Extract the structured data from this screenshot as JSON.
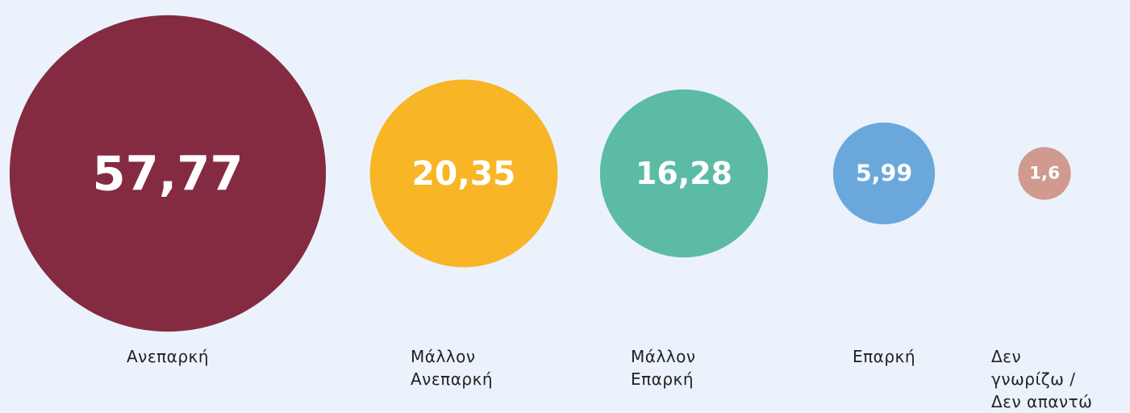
{
  "chart_data": {
    "type": "bubble",
    "categories": [
      "Ανεπαρκή",
      "Μάλλον Ανεπαρκή",
      "Μάλλον Επαρκή",
      "Επαρκή",
      "Δεν γνωρίζω / Δεν απαντώ"
    ],
    "values": [
      57.77,
      20.35,
      16.28,
      5.99,
      1.6
    ],
    "value_labels": [
      "57,77",
      "20,35",
      "16,28",
      "5,99",
      "1,6"
    ],
    "colors": [
      "#842b41",
      "#f8b526",
      "#5cbba5",
      "#6aa8dc",
      "#d09a8f"
    ]
  }
}
